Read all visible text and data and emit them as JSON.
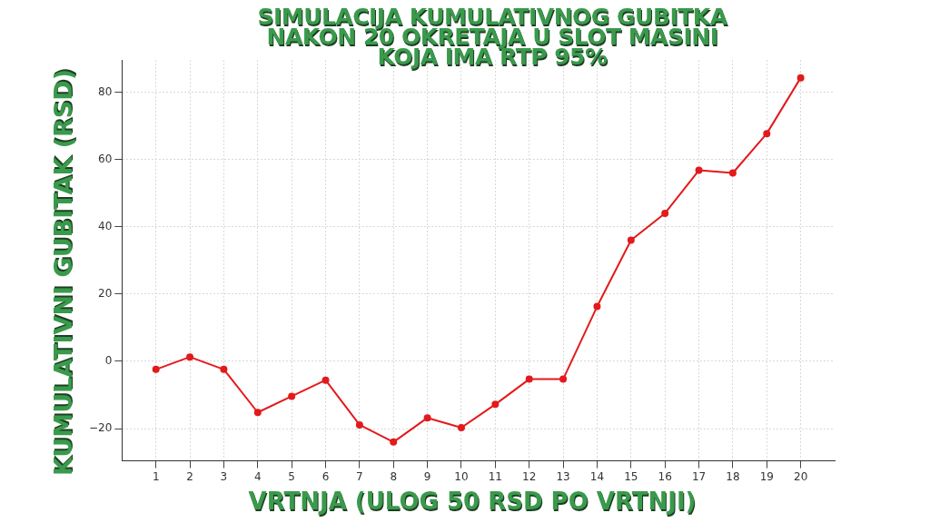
{
  "chart_data": {
    "type": "line",
    "title": "SIMULACIJA KUMULATIVNOG GUBITKA NAKON 20 OKRETAJA U SLOT MASINI KOJA IMA RTP 95%",
    "xlabel": "VRTNJA (ULOG 50 RSD PO VRTNJI)",
    "ylabel": "KUMULATIVNI GUBITAK (RSD)",
    "x": [
      1,
      2,
      3,
      4,
      5,
      6,
      7,
      8,
      9,
      10,
      11,
      12,
      13,
      14,
      15,
      16,
      17,
      18,
      19,
      20
    ],
    "series": [
      {
        "color": "#e31a1c",
        "values": [
          -2.4,
          1.3,
          -2.4,
          -15.2,
          -10.4,
          -5.6,
          -18.9,
          -24,
          -16.8,
          -19.7,
          -12.8,
          -5.3,
          -5.3,
          16.3,
          36,
          44,
          56.8,
          56,
          67.7,
          84.3
        ]
      }
    ],
    "xlim": [
      0,
      21
    ],
    "xticks": [
      1,
      2,
      3,
      4,
      5,
      6,
      7,
      8,
      9,
      10,
      11,
      12,
      13,
      14,
      15,
      16,
      17,
      18,
      19,
      20
    ],
    "ylim": [
      -29.6,
      89.6
    ],
    "yticks": [
      -20,
      0,
      20,
      40,
      60,
      80
    ],
    "grid": true,
    "marker": "circle",
    "line_style": "solid"
  }
}
